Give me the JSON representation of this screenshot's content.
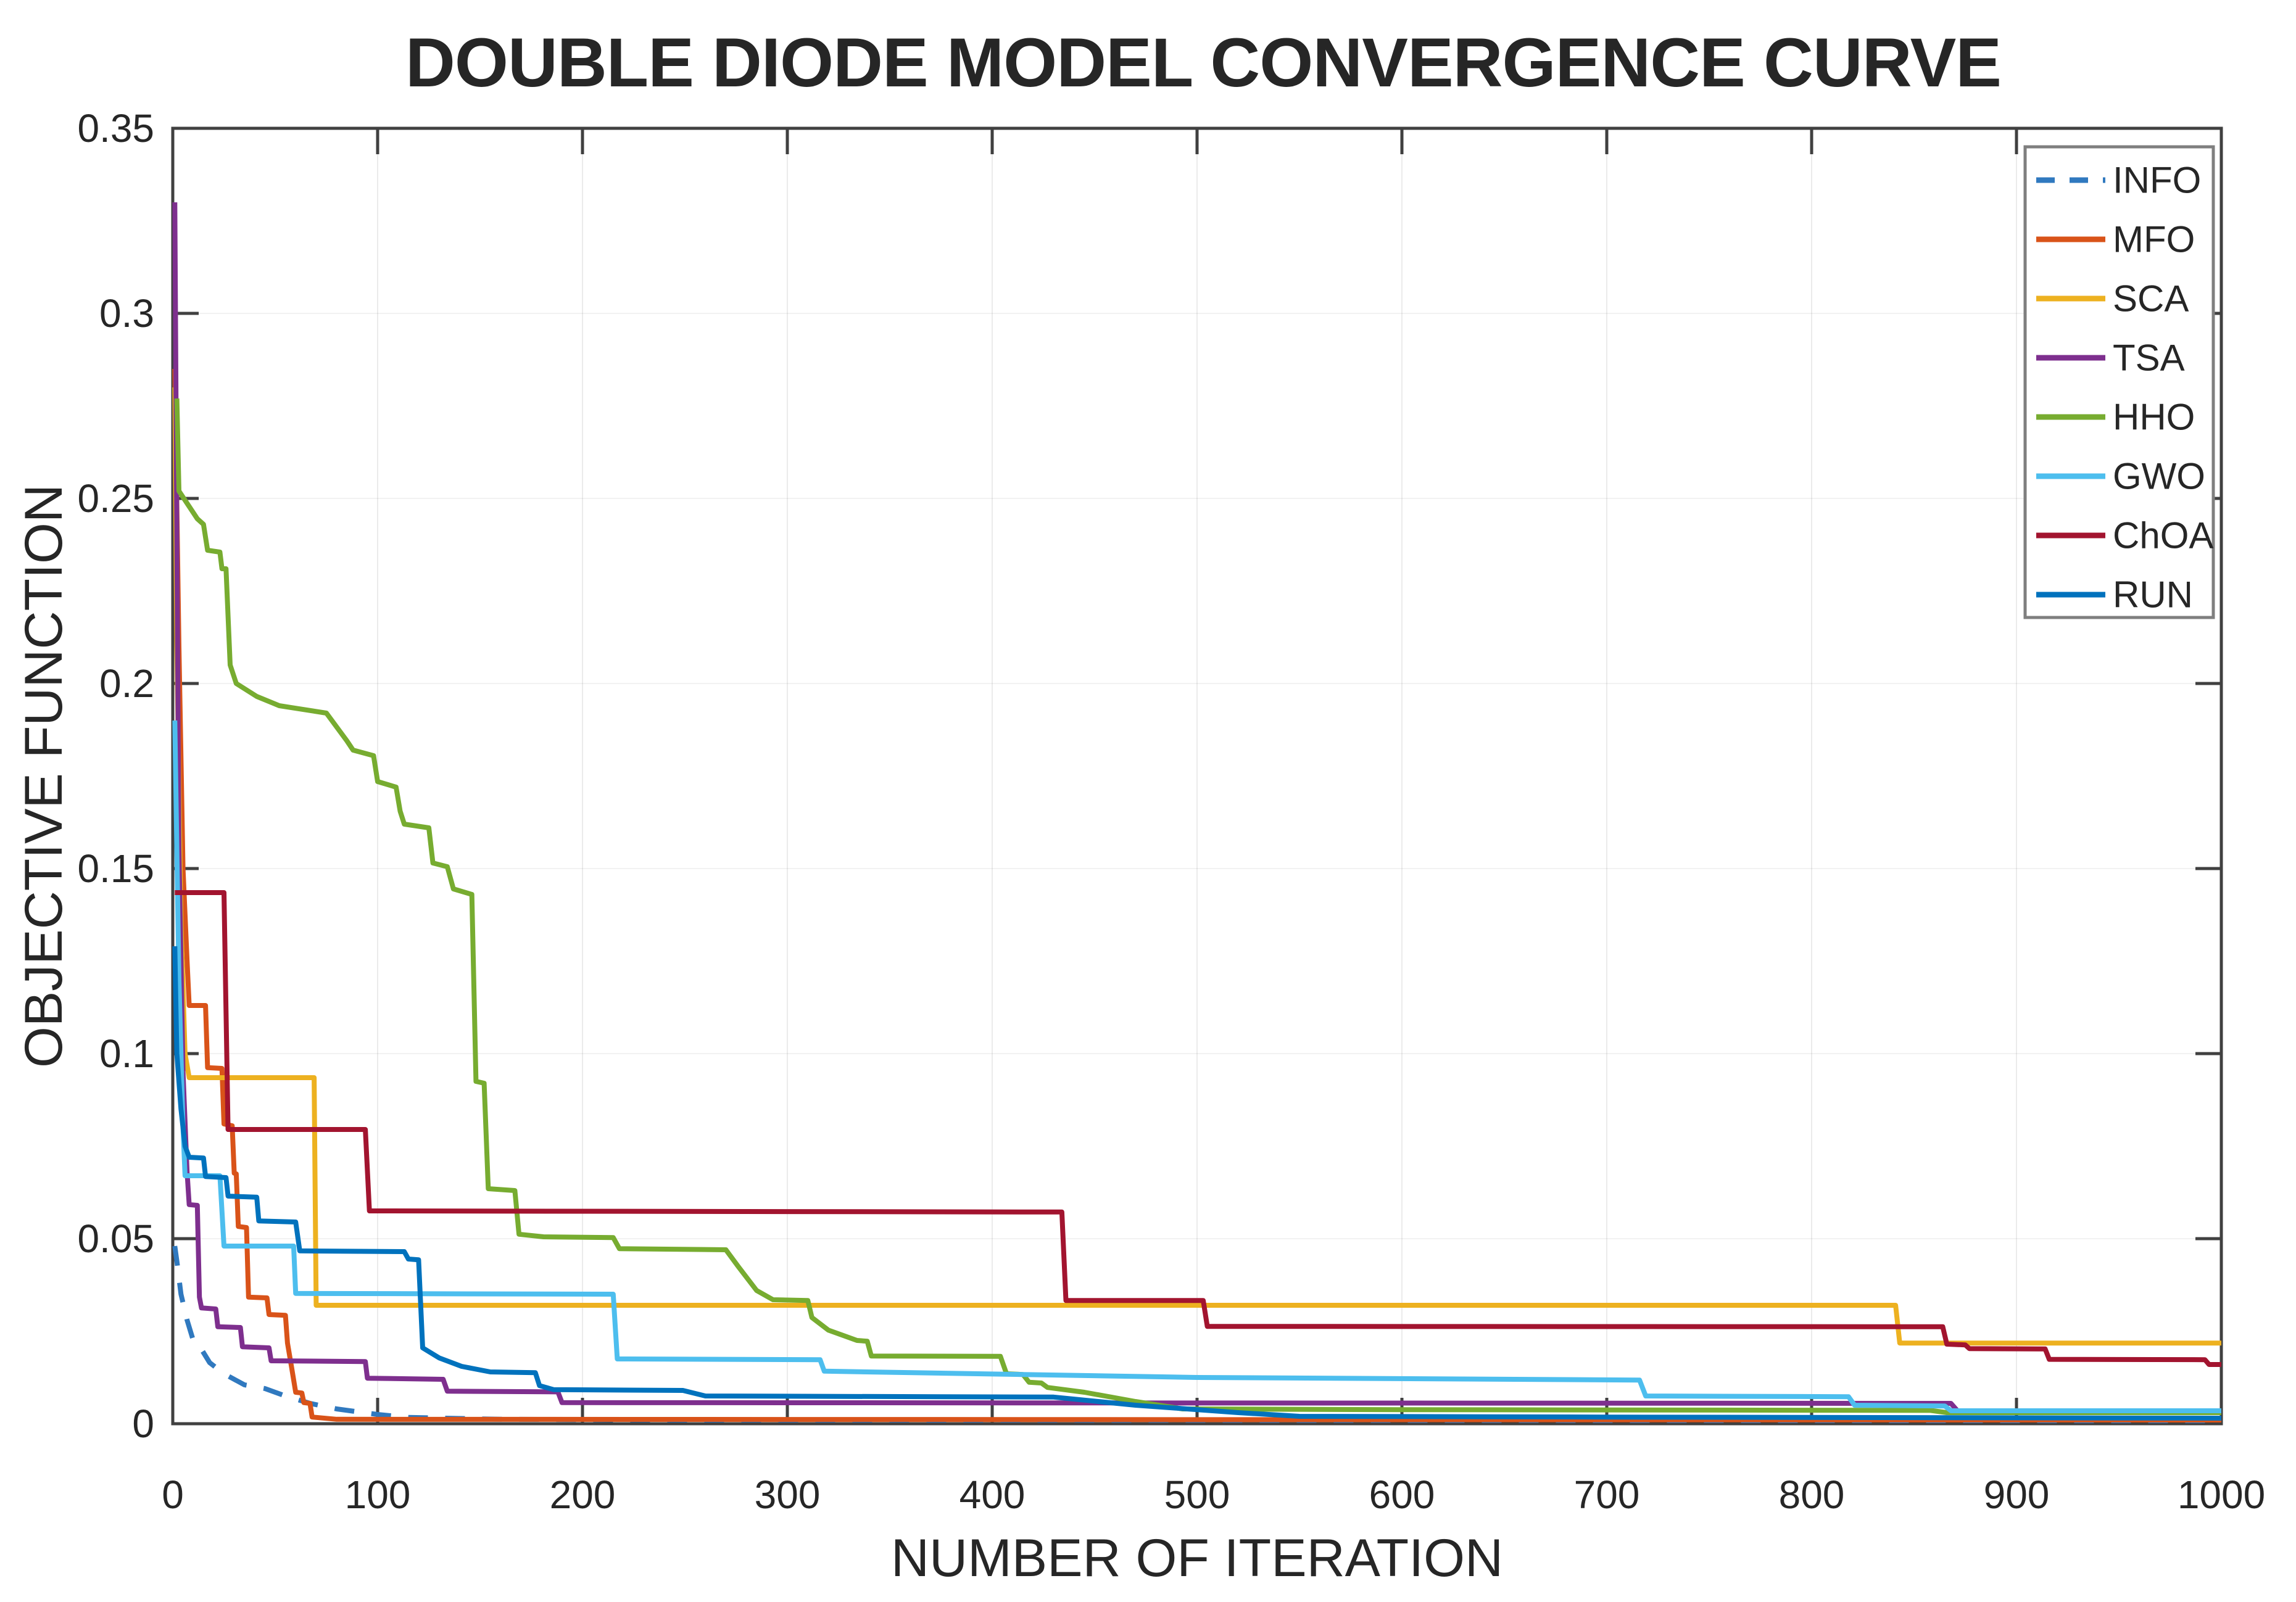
{
  "chart_data": {
    "type": "line",
    "title": "DOUBLE DIODE MODEL CONVERGENCE CURVE",
    "xlabel": "NUMBER OF ITERATION",
    "ylabel": "OBJECTIVE FUNCTION",
    "xlim": [
      0,
      1000
    ],
    "ylim": [
      0,
      0.35
    ],
    "x_ticks": [
      0,
      100,
      200,
      300,
      400,
      500,
      600,
      700,
      800,
      900,
      1000
    ],
    "x_tick_labels": [
      "0",
      "100",
      "200",
      "300",
      "400",
      "500",
      "600",
      "700",
      "800",
      "900",
      "1000"
    ],
    "y_ticks": [
      0,
      0.05,
      0.1,
      0.15,
      0.2,
      0.25,
      0.3,
      0.35
    ],
    "y_tick_labels": [
      "0",
      "0.05",
      "0.1",
      "0.15",
      "0.2",
      "0.25",
      "0.3",
      "0.35"
    ],
    "grid": true,
    "legend_position": "top-right",
    "axis_color": "#404040",
    "grid_color_vertical": "rgba(0,0,0,0.08)",
    "grid_color_horizontal": "rgba(0,0,0,0.05)",
    "series": [
      {
        "name": "INFO",
        "color": "#3079bf",
        "line_style": "dashed",
        "points": [
          [
            1,
            0.048
          ],
          [
            2,
            0.044
          ],
          [
            4,
            0.035
          ],
          [
            7,
            0.028
          ],
          [
            10,
            0.0225
          ],
          [
            13,
            0.021
          ],
          [
            18,
            0.0165
          ],
          [
            25,
            0.0135
          ],
          [
            35,
            0.0105
          ],
          [
            45,
            0.0095
          ],
          [
            55,
            0.0075
          ],
          [
            67,
            0.0055
          ],
          [
            80,
            0.004
          ],
          [
            100,
            0.0025
          ],
          [
            115,
            0.0017
          ],
          [
            160,
            0.0012
          ],
          [
            250,
            0.001
          ],
          [
            1000,
            0.0008
          ]
        ]
      },
      {
        "name": "MFO",
        "color": "#d95319",
        "line_style": "solid",
        "points": [
          [
            1,
            0.285
          ],
          [
            3,
            0.21
          ],
          [
            5,
            0.15
          ],
          [
            7,
            0.125
          ],
          [
            8,
            0.113
          ],
          [
            16,
            0.113
          ],
          [
            17,
            0.0962
          ],
          [
            24,
            0.096
          ],
          [
            25,
            0.081
          ],
          [
            29,
            0.0805
          ],
          [
            30,
            0.0677
          ],
          [
            31,
            0.0675
          ],
          [
            32,
            0.0533
          ],
          [
            36,
            0.053
          ],
          [
            37,
            0.0342
          ],
          [
            46,
            0.034
          ],
          [
            47,
            0.0295
          ],
          [
            55,
            0.0293
          ],
          [
            56,
            0.0218
          ],
          [
            58,
            0.0152
          ],
          [
            60,
            0.0085
          ],
          [
            63,
            0.0083
          ],
          [
            64,
            0.0057
          ],
          [
            67,
            0.0055
          ],
          [
            68,
            0.0018
          ],
          [
            80,
            0.0012
          ],
          [
            1000,
            0.001
          ]
        ]
      },
      {
        "name": "SCA",
        "color": "#edb120",
        "line_style": "solid",
        "points": [
          [
            1,
            0.28
          ],
          [
            2,
            0.21
          ],
          [
            4,
            0.135
          ],
          [
            6,
            0.1
          ],
          [
            8,
            0.0935
          ],
          [
            69,
            0.0935
          ],
          [
            70,
            0.032
          ],
          [
            841,
            0.032
          ],
          [
            843,
            0.0218
          ],
          [
            1000,
            0.0218
          ]
        ]
      },
      {
        "name": "TSA",
        "color": "#7e2f8e",
        "line_style": "solid",
        "points": [
          [
            1,
            0.33
          ],
          [
            2,
            0.24
          ],
          [
            3,
            0.155
          ],
          [
            5,
            0.095
          ],
          [
            7,
            0.068
          ],
          [
            8,
            0.0592
          ],
          [
            12,
            0.059
          ],
          [
            13,
            0.0342
          ],
          [
            14,
            0.0313
          ],
          [
            21,
            0.031
          ],
          [
            22,
            0.0262
          ],
          [
            33,
            0.026
          ],
          [
            34,
            0.0208
          ],
          [
            47,
            0.0205
          ],
          [
            48,
            0.017
          ],
          [
            94,
            0.0168
          ],
          [
            95,
            0.0123
          ],
          [
            132,
            0.012
          ],
          [
            134,
            0.0088
          ],
          [
            188,
            0.0086
          ],
          [
            190,
            0.0057
          ],
          [
            868,
            0.0055
          ],
          [
            872,
            0.003
          ],
          [
            1000,
            0.003
          ]
        ]
      },
      {
        "name": "HHO",
        "color": "#77ac30",
        "line_style": "solid",
        "points": [
          [
            2,
            0.277
          ],
          [
            3,
            0.252
          ],
          [
            12,
            0.2445
          ],
          [
            15,
            0.243
          ],
          [
            17,
            0.236
          ],
          [
            23,
            0.2355
          ],
          [
            24,
            0.231
          ],
          [
            26,
            0.231
          ],
          [
            28,
            0.205
          ],
          [
            31,
            0.2
          ],
          [
            41,
            0.1965
          ],
          [
            52,
            0.194
          ],
          [
            75,
            0.192
          ],
          [
            85,
            0.1845
          ],
          [
            88,
            0.182
          ],
          [
            98,
            0.1805
          ],
          [
            100,
            0.1735
          ],
          [
            109,
            0.172
          ],
          [
            111,
            0.1655
          ],
          [
            113,
            0.162
          ],
          [
            125,
            0.161
          ],
          [
            127,
            0.1515
          ],
          [
            134,
            0.1505
          ],
          [
            137,
            0.1445
          ],
          [
            146,
            0.143
          ],
          [
            148,
            0.0925
          ],
          [
            152,
            0.092
          ],
          [
            154,
            0.0635
          ],
          [
            167,
            0.063
          ],
          [
            169,
            0.0512
          ],
          [
            181,
            0.0505
          ],
          [
            215,
            0.0503
          ],
          [
            218,
            0.0473
          ],
          [
            270,
            0.047
          ],
          [
            276,
            0.0425
          ],
          [
            285,
            0.036
          ],
          [
            293,
            0.0335
          ],
          [
            310,
            0.0333
          ],
          [
            312,
            0.0287
          ],
          [
            320,
            0.0253
          ],
          [
            334,
            0.0225
          ],
          [
            339,
            0.0223
          ],
          [
            341,
            0.0183
          ],
          [
            404,
            0.0182
          ],
          [
            407,
            0.0135
          ],
          [
            415,
            0.0133
          ],
          [
            418,
            0.0112
          ],
          [
            424,
            0.011
          ],
          [
            427,
            0.0098
          ],
          [
            445,
            0.0085
          ],
          [
            470,
            0.006
          ],
          [
            493,
            0.004
          ],
          [
            600,
            0.0038
          ],
          [
            858,
            0.0036
          ],
          [
            866,
            0.003
          ],
          [
            1000,
            0.003
          ]
        ]
      },
      {
        "name": "GWO",
        "color": "#4dbeee",
        "line_style": "solid",
        "points": [
          [
            1,
            0.19
          ],
          [
            2,
            0.155
          ],
          [
            3,
            0.12
          ],
          [
            5,
            0.08
          ],
          [
            6,
            0.067
          ],
          [
            23,
            0.067
          ],
          [
            25,
            0.048
          ],
          [
            59,
            0.048
          ],
          [
            60,
            0.0352
          ],
          [
            215,
            0.035
          ],
          [
            217,
            0.0175
          ],
          [
            316,
            0.0173
          ],
          [
            318,
            0.0142
          ],
          [
            500,
            0.0125
          ],
          [
            716,
            0.0118
          ],
          [
            719,
            0.0075
          ],
          [
            818,
            0.0073
          ],
          [
            821,
            0.005
          ],
          [
            865,
            0.0048
          ],
          [
            868,
            0.0035
          ],
          [
            1000,
            0.0035
          ]
        ]
      },
      {
        "name": "ChOA",
        "color": "#a2142f",
        "line_style": "solid",
        "points": [
          [
            1,
            0.1435
          ],
          [
            25,
            0.1435
          ],
          [
            27,
            0.0795
          ],
          [
            94,
            0.0795
          ],
          [
            96,
            0.0575
          ],
          [
            434,
            0.0572
          ],
          [
            436,
            0.0333
          ],
          [
            503,
            0.0333
          ],
          [
            505,
            0.0263
          ],
          [
            864,
            0.0262
          ],
          [
            866,
            0.0215
          ],
          [
            875,
            0.0213
          ],
          [
            877,
            0.0203
          ],
          [
            914,
            0.0202
          ],
          [
            916,
            0.0174
          ],
          [
            992,
            0.0173
          ],
          [
            994,
            0.016
          ],
          [
            1000,
            0.016
          ]
        ]
      },
      {
        "name": "RUN",
        "color": "#0072bd",
        "line_style": "solid",
        "points": [
          [
            1,
            0.129
          ],
          [
            2,
            0.1
          ],
          [
            4,
            0.085
          ],
          [
            6,
            0.075
          ],
          [
            8,
            0.072
          ],
          [
            15,
            0.0718
          ],
          [
            16,
            0.0668
          ],
          [
            26,
            0.0665
          ],
          [
            27,
            0.0615
          ],
          [
            41,
            0.0612
          ],
          [
            42,
            0.0548
          ],
          [
            60,
            0.0545
          ],
          [
            62,
            0.0467
          ],
          [
            113,
            0.0465
          ],
          [
            115,
            0.0445
          ],
          [
            120,
            0.0443
          ],
          [
            122,
            0.0205
          ],
          [
            130,
            0.0178
          ],
          [
            141,
            0.0155
          ],
          [
            155,
            0.014
          ],
          [
            177,
            0.0138
          ],
          [
            179,
            0.0103
          ],
          [
            186,
            0.0092
          ],
          [
            249,
            0.009
          ],
          [
            260,
            0.0075
          ],
          [
            430,
            0.0072
          ],
          [
            470,
            0.005
          ],
          [
            520,
            0.003
          ],
          [
            550,
            0.002
          ],
          [
            700,
            0.0018
          ],
          [
            1000,
            0.0015
          ]
        ]
      }
    ]
  }
}
